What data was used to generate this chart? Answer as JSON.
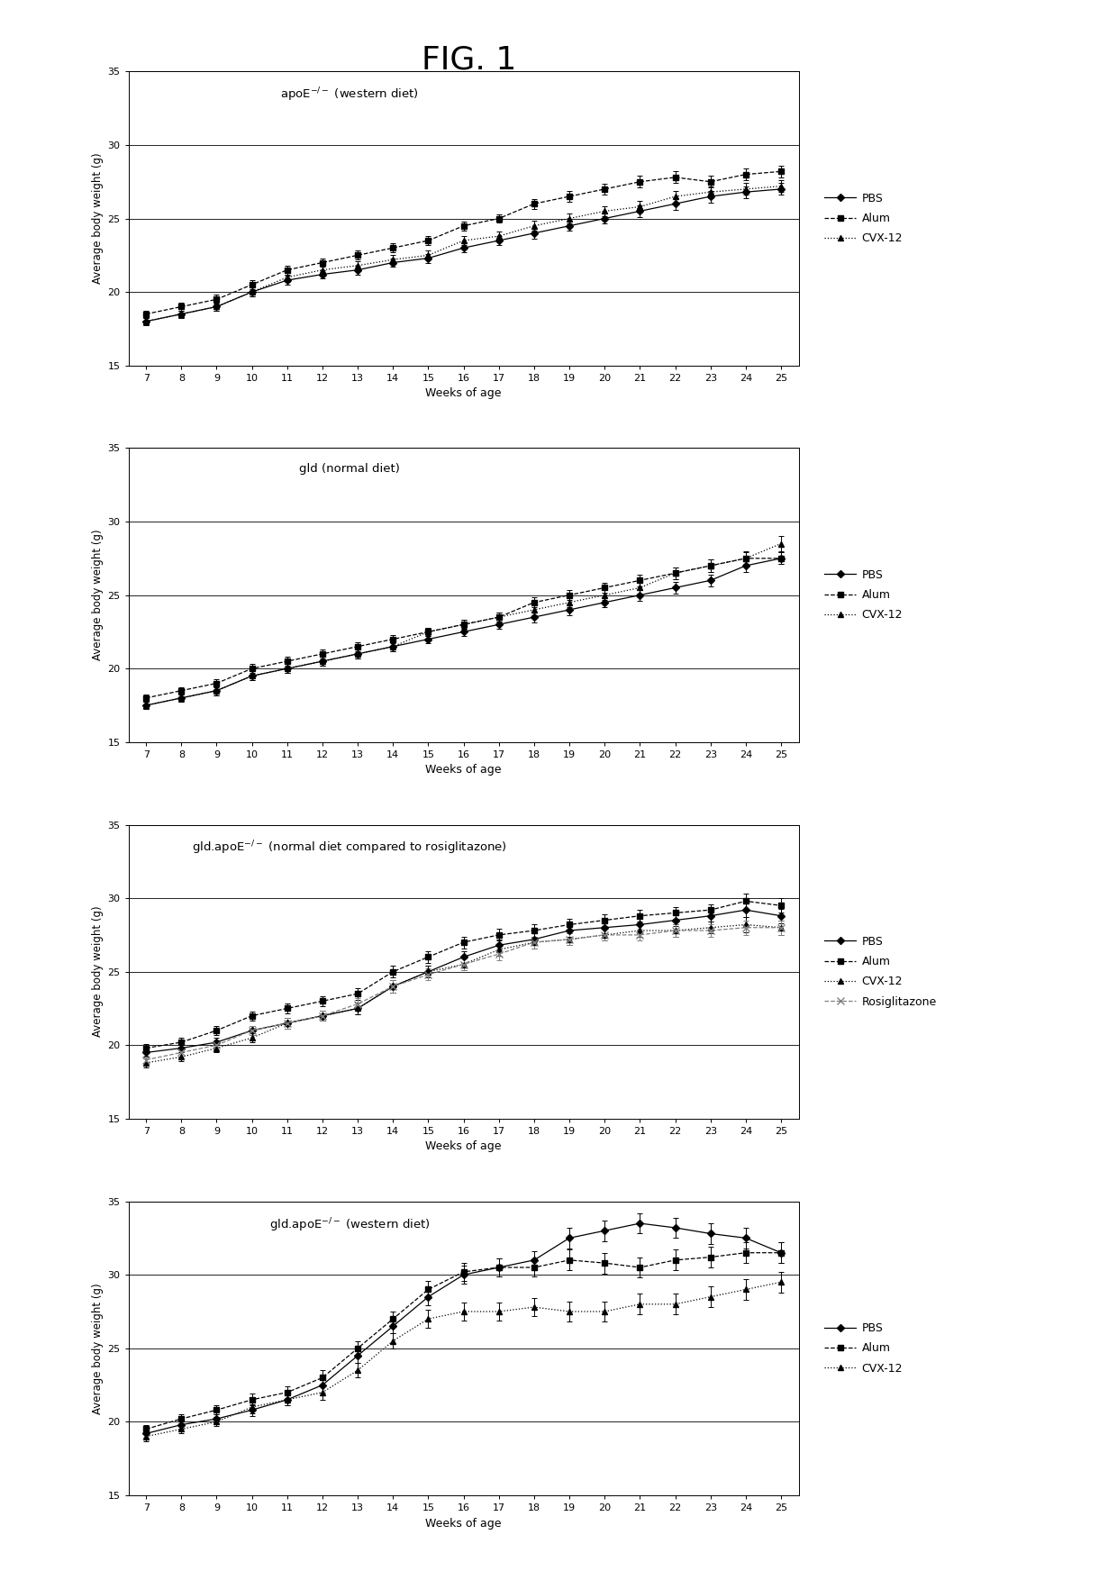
{
  "title": "FIG. 1",
  "weeks": [
    7,
    8,
    9,
    10,
    11,
    12,
    13,
    14,
    15,
    16,
    17,
    18,
    19,
    20,
    21,
    22,
    23,
    24,
    25
  ],
  "panels": [
    {
      "title": "apoE$^{-/-}$ (western diet)",
      "series": [
        {
          "label": "PBS",
          "marker": "D",
          "linestyle": "-",
          "color": "black",
          "markersize": 4,
          "markerfacecolor": "black",
          "values": [
            18.0,
            18.5,
            19.0,
            20.0,
            20.8,
            21.2,
            21.5,
            22.0,
            22.3,
            23.0,
            23.5,
            24.0,
            24.5,
            25.0,
            25.5,
            26.0,
            26.5,
            26.8,
            27.0
          ],
          "errors": [
            0.25,
            0.25,
            0.3,
            0.3,
            0.3,
            0.3,
            0.3,
            0.3,
            0.3,
            0.3,
            0.3,
            0.35,
            0.35,
            0.35,
            0.4,
            0.4,
            0.4,
            0.4,
            0.4
          ]
        },
        {
          "label": "Alum",
          "marker": "s",
          "linestyle": "--",
          "color": "black",
          "markersize": 4,
          "markerfacecolor": "black",
          "values": [
            18.5,
            19.0,
            19.5,
            20.5,
            21.5,
            22.0,
            22.5,
            23.0,
            23.5,
            24.5,
            25.0,
            26.0,
            26.5,
            27.0,
            27.5,
            27.8,
            27.5,
            28.0,
            28.2
          ],
          "errors": [
            0.25,
            0.25,
            0.3,
            0.3,
            0.3,
            0.3,
            0.3,
            0.3,
            0.3,
            0.3,
            0.3,
            0.35,
            0.35,
            0.35,
            0.4,
            0.4,
            0.4,
            0.4,
            0.4
          ]
        },
        {
          "label": "CVX-12",
          "marker": "^",
          "linestyle": ":",
          "color": "black",
          "markersize": 4,
          "markerfacecolor": "black",
          "values": [
            18.0,
            18.5,
            19.0,
            20.0,
            21.0,
            21.5,
            21.8,
            22.2,
            22.5,
            23.5,
            23.8,
            24.5,
            25.0,
            25.5,
            25.8,
            26.5,
            26.8,
            27.0,
            27.2
          ],
          "errors": [
            0.25,
            0.25,
            0.3,
            0.3,
            0.3,
            0.3,
            0.3,
            0.3,
            0.3,
            0.3,
            0.3,
            0.35,
            0.35,
            0.35,
            0.4,
            0.4,
            0.4,
            0.4,
            0.4
          ]
        }
      ],
      "ylim": [
        15,
        35
      ],
      "yticks": [
        15,
        20,
        25,
        30,
        35
      ],
      "has_rosiglitazone": false
    },
    {
      "title": "gld (normal diet)",
      "series": [
        {
          "label": "PBS",
          "marker": "D",
          "linestyle": "-",
          "color": "black",
          "markersize": 4,
          "markerfacecolor": "black",
          "values": [
            17.5,
            18.0,
            18.5,
            19.5,
            20.0,
            20.5,
            21.0,
            21.5,
            22.0,
            22.5,
            23.0,
            23.5,
            24.0,
            24.5,
            25.0,
            25.5,
            26.0,
            27.0,
            27.5
          ],
          "errors": [
            0.25,
            0.25,
            0.3,
            0.3,
            0.3,
            0.3,
            0.3,
            0.3,
            0.3,
            0.3,
            0.3,
            0.35,
            0.35,
            0.35,
            0.4,
            0.4,
            0.4,
            0.4,
            0.4
          ]
        },
        {
          "label": "Alum",
          "marker": "s",
          "linestyle": "--",
          "color": "black",
          "markersize": 4,
          "markerfacecolor": "black",
          "values": [
            18.0,
            18.5,
            19.0,
            20.0,
            20.5,
            21.0,
            21.5,
            22.0,
            22.5,
            23.0,
            23.5,
            24.5,
            25.0,
            25.5,
            26.0,
            26.5,
            27.0,
            27.5,
            27.5
          ],
          "errors": [
            0.25,
            0.25,
            0.3,
            0.3,
            0.3,
            0.3,
            0.3,
            0.3,
            0.3,
            0.3,
            0.3,
            0.35,
            0.35,
            0.35,
            0.4,
            0.4,
            0.4,
            0.4,
            0.4
          ]
        },
        {
          "label": "CVX-12",
          "marker": "^",
          "linestyle": ":",
          "color": "black",
          "markersize": 4,
          "markerfacecolor": "black",
          "values": [
            17.5,
            18.0,
            18.5,
            19.5,
            20.0,
            20.5,
            21.0,
            21.5,
            22.5,
            23.0,
            23.5,
            24.0,
            24.5,
            25.0,
            25.5,
            26.5,
            27.0,
            27.5,
            28.5
          ],
          "errors": [
            0.25,
            0.25,
            0.3,
            0.3,
            0.3,
            0.3,
            0.3,
            0.3,
            0.3,
            0.3,
            0.3,
            0.35,
            0.35,
            0.35,
            0.4,
            0.4,
            0.4,
            0.5,
            0.5
          ]
        }
      ],
      "ylim": [
        15,
        35
      ],
      "yticks": [
        15,
        20,
        25,
        30,
        35
      ],
      "has_rosiglitazone": false
    },
    {
      "title": "gld.apoE$^{-/-}$ (normal diet compared to rosiglitazone)",
      "series": [
        {
          "label": "PBS",
          "marker": "D",
          "linestyle": "-",
          "color": "black",
          "markersize": 4,
          "markerfacecolor": "black",
          "values": [
            19.5,
            19.8,
            20.2,
            21.0,
            21.5,
            22.0,
            22.5,
            24.0,
            25.0,
            26.0,
            26.8,
            27.2,
            27.8,
            28.0,
            28.2,
            28.5,
            28.8,
            29.2,
            28.8
          ],
          "errors": [
            0.3,
            0.3,
            0.3,
            0.3,
            0.35,
            0.35,
            0.4,
            0.4,
            0.4,
            0.4,
            0.4,
            0.4,
            0.4,
            0.4,
            0.4,
            0.4,
            0.4,
            0.5,
            0.5
          ]
        },
        {
          "label": "Alum",
          "marker": "s",
          "linestyle": "--",
          "color": "black",
          "markersize": 4,
          "markerfacecolor": "black",
          "values": [
            19.8,
            20.2,
            21.0,
            22.0,
            22.5,
            23.0,
            23.5,
            25.0,
            26.0,
            27.0,
            27.5,
            27.8,
            28.2,
            28.5,
            28.8,
            29.0,
            29.2,
            29.8,
            29.5
          ],
          "errors": [
            0.3,
            0.3,
            0.3,
            0.3,
            0.35,
            0.35,
            0.4,
            0.4,
            0.4,
            0.4,
            0.4,
            0.4,
            0.4,
            0.4,
            0.4,
            0.4,
            0.4,
            0.5,
            0.5
          ]
        },
        {
          "label": "CVX-12",
          "marker": "^",
          "linestyle": ":",
          "color": "black",
          "markersize": 4,
          "markerfacecolor": "black",
          "values": [
            18.8,
            19.2,
            19.8,
            20.5,
            21.5,
            22.0,
            22.5,
            24.0,
            25.0,
            25.5,
            26.5,
            27.0,
            27.2,
            27.5,
            27.8,
            27.8,
            28.0,
            28.2,
            28.0
          ],
          "errors": [
            0.3,
            0.3,
            0.3,
            0.3,
            0.35,
            0.35,
            0.4,
            0.4,
            0.4,
            0.4,
            0.4,
            0.4,
            0.4,
            0.4,
            0.4,
            0.4,
            0.4,
            0.5,
            0.5
          ]
        },
        {
          "label": "Rosiglitazone",
          "marker": "x",
          "linestyle": "--",
          "color": "gray",
          "markersize": 6,
          "markerfacecolor": "none",
          "values": [
            19.0,
            19.5,
            20.0,
            21.0,
            21.5,
            22.0,
            22.8,
            24.0,
            24.8,
            25.5,
            26.2,
            27.0,
            27.2,
            27.5,
            27.5,
            27.8,
            27.8,
            28.0,
            28.0
          ],
          "errors": [
            0.3,
            0.3,
            0.3,
            0.3,
            0.35,
            0.35,
            0.4,
            0.4,
            0.4,
            0.4,
            0.4,
            0.4,
            0.4,
            0.4,
            0.4,
            0.4,
            0.4,
            0.5,
            0.5
          ]
        }
      ],
      "ylim": [
        15,
        35
      ],
      "yticks": [
        15,
        20,
        25,
        30,
        35
      ],
      "has_rosiglitazone": true
    },
    {
      "title": "gld.apoE$^{-/-}$ (western diet)",
      "series": [
        {
          "label": "PBS",
          "marker": "D",
          "linestyle": "-",
          "color": "black",
          "markersize": 4,
          "markerfacecolor": "black",
          "values": [
            19.2,
            19.8,
            20.2,
            20.8,
            21.5,
            22.5,
            24.5,
            26.5,
            28.5,
            30.0,
            30.5,
            31.0,
            32.5,
            33.0,
            33.5,
            33.2,
            32.8,
            32.5,
            31.5
          ],
          "errors": [
            0.3,
            0.3,
            0.3,
            0.4,
            0.4,
            0.5,
            0.5,
            0.5,
            0.6,
            0.6,
            0.6,
            0.6,
            0.7,
            0.7,
            0.7,
            0.7,
            0.7,
            0.7,
            0.7
          ]
        },
        {
          "label": "Alum",
          "marker": "s",
          "linestyle": "--",
          "color": "black",
          "markersize": 4,
          "markerfacecolor": "black",
          "values": [
            19.5,
            20.2,
            20.8,
            21.5,
            22.0,
            23.0,
            25.0,
            27.0,
            29.0,
            30.2,
            30.5,
            30.5,
            31.0,
            30.8,
            30.5,
            31.0,
            31.2,
            31.5,
            31.5
          ],
          "errors": [
            0.3,
            0.3,
            0.3,
            0.4,
            0.4,
            0.5,
            0.5,
            0.5,
            0.6,
            0.6,
            0.6,
            0.6,
            0.7,
            0.7,
            0.7,
            0.7,
            0.7,
            0.7,
            0.7
          ]
        },
        {
          "label": "CVX-12",
          "marker": "^",
          "linestyle": ":",
          "color": "black",
          "markersize": 4,
          "markerfacecolor": "black",
          "values": [
            19.0,
            19.5,
            20.0,
            21.0,
            21.5,
            22.0,
            23.5,
            25.5,
            27.0,
            27.5,
            27.5,
            27.8,
            27.5,
            27.5,
            28.0,
            28.0,
            28.5,
            29.0,
            29.5
          ],
          "errors": [
            0.3,
            0.3,
            0.3,
            0.4,
            0.4,
            0.5,
            0.5,
            0.5,
            0.6,
            0.6,
            0.6,
            0.6,
            0.7,
            0.7,
            0.7,
            0.7,
            0.7,
            0.7,
            0.7
          ]
        }
      ],
      "ylim": [
        15,
        35
      ],
      "yticks": [
        15,
        20,
        25,
        30,
        35
      ],
      "has_rosiglitazone": false
    }
  ],
  "xlabel": "Weeks of age",
  "ylabel": "Average body weight (g)",
  "bg_color": "white"
}
